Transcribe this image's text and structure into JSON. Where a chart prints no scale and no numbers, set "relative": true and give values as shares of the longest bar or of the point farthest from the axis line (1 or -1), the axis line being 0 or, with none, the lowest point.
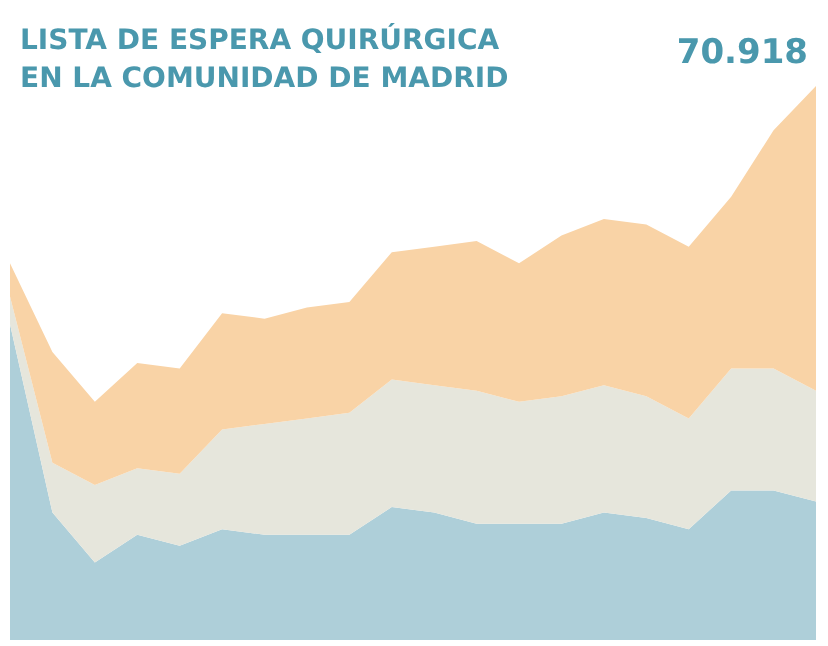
{
  "chart_data": {
    "type": "area",
    "title": "LISTA DE ESPERA QUIRÚRGICA\nEN LA COMUNIDAD DE MADRID",
    "annotations": [
      "70.918"
    ],
    "relative": true,
    "stacked": true,
    "marker": "none",
    "categories": [
      null,
      null,
      null,
      null,
      null,
      null,
      null,
      null,
      null,
      null,
      null,
      null,
      null,
      null,
      null,
      null,
      null,
      null,
      null,
      null
    ],
    "series": [
      {
        "color": "#aecfd9",
        "values": [
          0.57,
          0.23,
          0.14,
          0.19,
          0.17,
          0.2,
          0.19,
          0.19,
          0.19,
          0.24,
          0.23,
          0.21,
          0.21,
          0.21,
          0.23,
          0.22,
          0.2,
          0.27,
          0.27,
          0.25
        ]
      },
      {
        "color": "#e6e6dc",
        "values": [
          0.05,
          0.09,
          0.14,
          0.12,
          0.13,
          0.18,
          0.2,
          0.21,
          0.22,
          0.23,
          0.23,
          0.24,
          0.22,
          0.23,
          0.23,
          0.22,
          0.2,
          0.22,
          0.22,
          0.2
        ]
      },
      {
        "color": "#f9d3a6",
        "values": [
          0.06,
          0.2,
          0.15,
          0.19,
          0.19,
          0.21,
          0.19,
          0.2,
          0.2,
          0.23,
          0.25,
          0.27,
          0.25,
          0.29,
          0.3,
          0.31,
          0.31,
          0.31,
          0.43,
          0.55
        ]
      }
    ]
  }
}
